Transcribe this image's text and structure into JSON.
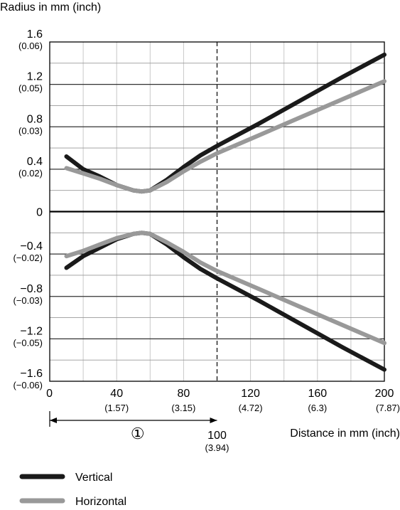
{
  "chart_data": {
    "type": "line",
    "ylabel": "Radius in mm (inch)",
    "xlabel": "Distance in mm (inch)",
    "xlim": [
      0,
      200
    ],
    "ylim": [
      -1.6,
      1.6
    ],
    "grid": true,
    "legend_position": "bottom-left",
    "x_ticks": [
      {
        "mm": "0",
        "inch": ""
      },
      {
        "mm": "40",
        "inch": "(1.57)"
      },
      {
        "mm": "80",
        "inch": "(3.15)"
      },
      {
        "mm": "120",
        "inch": "(4.72)"
      },
      {
        "mm": "160",
        "inch": "(6.3)"
      },
      {
        "mm": "200",
        "inch": "(7.87)"
      }
    ],
    "y_ticks": [
      {
        "mm": "1.6",
        "inch": "(0.06)"
      },
      {
        "mm": "1.2",
        "inch": "(0.05)"
      },
      {
        "mm": "0.8",
        "inch": "(0.03)"
      },
      {
        "mm": "0.4",
        "inch": "(0.02)"
      },
      {
        "mm": "0",
        "inch": ""
      },
      {
        "mm": "−0.4",
        "inch": "(−0.02)"
      },
      {
        "mm": "−0.8",
        "inch": "(−0.03)"
      },
      {
        "mm": "−1.2",
        "inch": "(−0.05)"
      },
      {
        "mm": "−1.6",
        "inch": "(−0.06)"
      }
    ],
    "marker_line": {
      "x": 100,
      "label_mm": "100",
      "label_inch": "(3.94)"
    },
    "range_annotation": {
      "from": 0,
      "to": 100,
      "label": "①"
    },
    "series": [
      {
        "name": "Vertical",
        "color": "#1a1a1a",
        "upper": [
          [
            10,
            0.52
          ],
          [
            20,
            0.4
          ],
          [
            30,
            0.33
          ],
          [
            40,
            0.25
          ],
          [
            50,
            0.2
          ],
          [
            55,
            0.19
          ],
          [
            60,
            0.2
          ],
          [
            70,
            0.3
          ],
          [
            80,
            0.42
          ],
          [
            90,
            0.53
          ],
          [
            100,
            0.62
          ],
          [
            125,
            0.83
          ],
          [
            150,
            1.05
          ],
          [
            175,
            1.27
          ],
          [
            200,
            1.48
          ]
        ],
        "lower": [
          [
            10,
            -0.53
          ],
          [
            20,
            -0.42
          ],
          [
            30,
            -0.34
          ],
          [
            40,
            -0.26
          ],
          [
            50,
            -0.21
          ],
          [
            55,
            -0.2
          ],
          [
            60,
            -0.21
          ],
          [
            70,
            -0.31
          ],
          [
            80,
            -0.43
          ],
          [
            90,
            -0.54
          ],
          [
            100,
            -0.63
          ],
          [
            125,
            -0.84
          ],
          [
            150,
            -1.06
          ],
          [
            175,
            -1.28
          ],
          [
            200,
            -1.49
          ]
        ]
      },
      {
        "name": "Horizontal",
        "color": "#999999",
        "upper": [
          [
            10,
            0.41
          ],
          [
            20,
            0.36
          ],
          [
            30,
            0.31
          ],
          [
            40,
            0.25
          ],
          [
            50,
            0.2
          ],
          [
            55,
            0.19
          ],
          [
            60,
            0.2
          ],
          [
            70,
            0.28
          ],
          [
            80,
            0.38
          ],
          [
            90,
            0.47
          ],
          [
            100,
            0.55
          ],
          [
            125,
            0.72
          ],
          [
            150,
            0.89
          ],
          [
            175,
            1.06
          ],
          [
            200,
            1.23
          ]
        ],
        "lower": [
          [
            10,
            -0.42
          ],
          [
            20,
            -0.37
          ],
          [
            30,
            -0.31
          ],
          [
            40,
            -0.25
          ],
          [
            50,
            -0.21
          ],
          [
            55,
            -0.2
          ],
          [
            60,
            -0.21
          ],
          [
            70,
            -0.29
          ],
          [
            80,
            -0.38
          ],
          [
            90,
            -0.48
          ],
          [
            100,
            -0.56
          ],
          [
            125,
            -0.73
          ],
          [
            150,
            -0.9
          ],
          [
            175,
            -1.07
          ],
          [
            200,
            -1.24
          ]
        ]
      }
    ]
  }
}
